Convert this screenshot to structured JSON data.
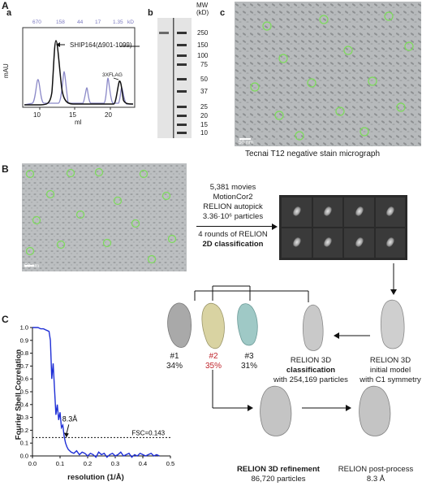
{
  "panel_A": {
    "label": "A",
    "a": {
      "label": "a",
      "ylabel": "mAU",
      "xlabel": "ml",
      "x_ticks": [
        "10",
        "15",
        "20"
      ],
      "standards": [
        "670",
        "158",
        "44",
        "17",
        "1.35",
        "kD"
      ],
      "peak_label": "SHIP164(Δ901-1099)",
      "small_peak_label": "3XFLAG"
    },
    "b": {
      "label": "b",
      "mw_title": "MW",
      "mw_unit": "(kD)",
      "markers": [
        "250",
        "150",
        "100",
        "75",
        "50",
        "37",
        "25",
        "20",
        "15",
        "10"
      ]
    },
    "c": {
      "label": "c",
      "scale_text": "50 nm",
      "caption": "Tecnai T12 negative stain micrograph"
    }
  },
  "panel_B": {
    "label": "B",
    "scale_text": "50 nm",
    "workflow": {
      "line1": "5,381 movies",
      "line2": "MotionCor2",
      "line3": "RELION autopick",
      "line4": "3.36·10⁶ particles",
      "line5": "4 rounds of RELION",
      "line6": "2D classification"
    },
    "classes": [
      {
        "id": "#1",
        "pct": "34%"
      },
      {
        "id": "#2",
        "pct": "35%"
      },
      {
        "id": "#3",
        "pct": "31%"
      }
    ],
    "class3d_title": "RELION 3D",
    "class3d_bold": "classification",
    "class3d_sub": "with 254,169 particles",
    "initial_title": "RELION 3D",
    "initial_line2": "initial model",
    "initial_line3": "with C1 symmetry",
    "refine_title": "RELION 3D refinement",
    "refine_sub": "86,720 particles",
    "post_title": "RELION post-process",
    "post_sub": "8.3 Å"
  },
  "chart_data": {
    "type": "line",
    "panel_label": "C",
    "title": "",
    "xlabel": "resolution (1/Å)",
    "ylabel": "Fourier Shell Correlation",
    "xlim": [
      0,
      0.5
    ],
    "ylim": [
      0,
      1.0
    ],
    "x_ticks": [
      "0.0",
      "0.1",
      "0.2",
      "0.3",
      "0.4",
      "0.5"
    ],
    "y_ticks": [
      "0.0",
      "0.1",
      "0.2",
      "0.3",
      "0.4",
      "0.5",
      "0.6",
      "0.7",
      "0.8",
      "0.9",
      "1.0"
    ],
    "threshold": {
      "value": 0.143,
      "label": "FSC=0.143"
    },
    "annotation": "8.3Å",
    "series": [
      {
        "x": [
          0.0,
          0.01,
          0.02,
          0.03,
          0.04,
          0.05,
          0.06,
          0.065,
          0.07,
          0.075,
          0.08,
          0.085,
          0.09,
          0.095,
          0.1,
          0.105,
          0.11,
          0.115,
          0.12,
          0.125,
          0.13,
          0.14,
          0.15,
          0.16,
          0.17,
          0.18,
          0.19,
          0.2,
          0.21,
          0.22,
          0.23,
          0.24,
          0.25,
          0.26,
          0.27,
          0.28,
          0.29,
          0.3,
          0.31,
          0.32,
          0.33,
          0.34,
          0.35,
          0.36,
          0.37,
          0.38,
          0.39,
          0.4,
          0.41,
          0.42,
          0.43,
          0.44,
          0.45,
          0.46
        ],
        "y": [
          1.0,
          1.0,
          1.0,
          0.99,
          0.99,
          0.98,
          0.97,
          0.9,
          0.6,
          0.72,
          0.52,
          0.32,
          0.4,
          0.28,
          0.34,
          0.22,
          0.24,
          0.15,
          0.1,
          0.07,
          0.05,
          0.03,
          0.02,
          0.04,
          0.01,
          0.03,
          0.02,
          0.0,
          0.02,
          0.01,
          -0.01,
          0.03,
          0.01,
          0.02,
          -0.01,
          0.01,
          0.02,
          0.0,
          0.01,
          0.03,
          0.0,
          0.01,
          0.02,
          -0.01,
          0.01,
          0.0,
          0.02,
          0.01,
          0.0,
          0.01,
          0.02,
          0.0,
          0.01,
          0.0
        ]
      }
    ]
  }
}
